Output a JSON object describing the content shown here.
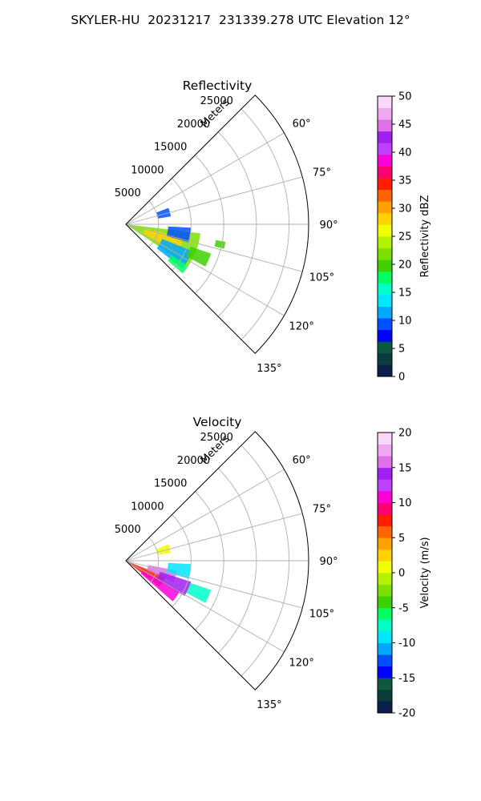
{
  "figure": {
    "suptitle": "SKYLER-HU  20231217  231339.278 UTC Elevation 12°"
  },
  "colors": {
    "grid": "#b0b0b0",
    "axis_line": "#000000"
  },
  "chart_data": [
    {
      "type": "heatmap",
      "title": "Reflectivity",
      "radial_label": "Meters",
      "radial_ticks": [
        "5000",
        "10000",
        "15000",
        "20000",
        "25000"
      ],
      "radial_tick_values": [
        5000,
        10000,
        15000,
        20000,
        25000
      ],
      "angle_ticks": [
        "60°",
        "75°",
        "90°",
        "105°",
        "120°",
        "135°"
      ],
      "angle_tick_values": [
        60,
        75,
        90,
        105,
        120,
        135
      ],
      "theta_range_deg": [
        45,
        135
      ],
      "r_max_m": 28000,
      "grid": true,
      "colorbar": {
        "label": "Reflectivity dBZ",
        "range": [
          0,
          50
        ],
        "ticks": [
          "0",
          "5",
          "10",
          "15",
          "20",
          "25",
          "30",
          "35",
          "40",
          "45",
          "50"
        ],
        "tick_values": [
          0,
          5,
          10,
          15,
          20,
          25,
          30,
          35,
          40,
          45,
          50
        ],
        "colormap": [
          "#0a1f4a",
          "#0b3b3a",
          "#0b5a3f",
          "#0000ff",
          "#0050ff",
          "#00a8ff",
          "#00e6ff",
          "#00ffc8",
          "#00ff60",
          "#40d000",
          "#7ce000",
          "#b4f000",
          "#f0ff00",
          "#ffd200",
          "#ffa000",
          "#ff6400",
          "#ff1e00",
          "#ff0070",
          "#ff00d8",
          "#c040ff",
          "#a020f0",
          "#e070e8",
          "#f0a8f0",
          "#fbd8fb"
        ]
      },
      "echo_regions": [
        {
          "az_deg": [
            97,
            124
          ],
          "r_m": [
            500,
            11500
          ],
          "value": 22
        },
        {
          "az_deg": [
            103,
            119
          ],
          "r_m": [
            3000,
            9000
          ],
          "value": 28
        },
        {
          "az_deg": [
            93,
            106
          ],
          "r_m": [
            6500,
            10000
          ],
          "value": 10
        },
        {
          "az_deg": [
            112,
            128
          ],
          "r_m": [
            6000,
            11000
          ],
          "value": 11
        },
        {
          "az_deg": [
            124,
            131
          ],
          "r_m": [
            8500,
            11500
          ],
          "value": 18
        },
        {
          "az_deg": [
            109,
            118
          ],
          "r_m": [
            10500,
            13800
          ],
          "value": 20
        },
        {
          "az_deg": [
            69,
            80
          ],
          "r_m": [
            5000,
            7000
          ],
          "value": 10
        },
        {
          "az_deg": [
            100,
            104
          ],
          "r_m": [
            14000,
            15500
          ],
          "value": 20
        }
      ]
    },
    {
      "type": "heatmap",
      "title": "Velocity",
      "radial_label": "Meters",
      "radial_ticks": [
        "5000",
        "10000",
        "15000",
        "20000",
        "25000"
      ],
      "radial_tick_values": [
        5000,
        10000,
        15000,
        20000,
        25000
      ],
      "angle_ticks": [
        "60°",
        "75°",
        "90°",
        "105°",
        "120°",
        "135°"
      ],
      "angle_tick_values": [
        60,
        75,
        90,
        105,
        120,
        135
      ],
      "theta_range_deg": [
        45,
        135
      ],
      "r_max_m": 28000,
      "grid": true,
      "colorbar": {
        "label": "Velocity (m/s)",
        "range": [
          -20,
          20
        ],
        "ticks": [
          "-20",
          "-15",
          "-10",
          "-5",
          "0",
          "5",
          "10",
          "15",
          "20"
        ],
        "tick_values": [
          -20,
          -15,
          -10,
          -5,
          0,
          5,
          10,
          15,
          20
        ],
        "colormap": [
          "#0a1f4a",
          "#0b3b3a",
          "#0b5a3f",
          "#0000ff",
          "#0050ff",
          "#00a8ff",
          "#00e6ff",
          "#00ffc8",
          "#00ff60",
          "#40d000",
          "#7ce000",
          "#b4f000",
          "#f0ff00",
          "#ffd200",
          "#ffa000",
          "#ff6400",
          "#ff1e00",
          "#ff0070",
          "#ff00d8",
          "#c040ff",
          "#a020f0",
          "#e070e8",
          "#f0a8f0",
          "#fbd8fb"
        ]
      },
      "echo_regions": [
        {
          "az_deg": [
            112,
            128
          ],
          "r_m": [
            500,
            6500
          ],
          "value": 8
        },
        {
          "az_deg": [
            119,
            131
          ],
          "r_m": [
            3000,
            9500
          ],
          "value": 10
        },
        {
          "az_deg": [
            101,
            114
          ],
          "r_m": [
            3500,
            8000
          ],
          "value": 15
        },
        {
          "az_deg": [
            108,
            121
          ],
          "r_m": [
            5500,
            10500
          ],
          "value": 14
        },
        {
          "az_deg": [
            93,
            106
          ],
          "r_m": [
            6500,
            10000
          ],
          "value": -9
        },
        {
          "az_deg": [
            109,
            118
          ],
          "r_m": [
            10500,
            13800
          ],
          "value": -8
        },
        {
          "az_deg": [
            69,
            80
          ],
          "r_m": [
            5000,
            7000
          ],
          "value": 1
        }
      ]
    }
  ]
}
